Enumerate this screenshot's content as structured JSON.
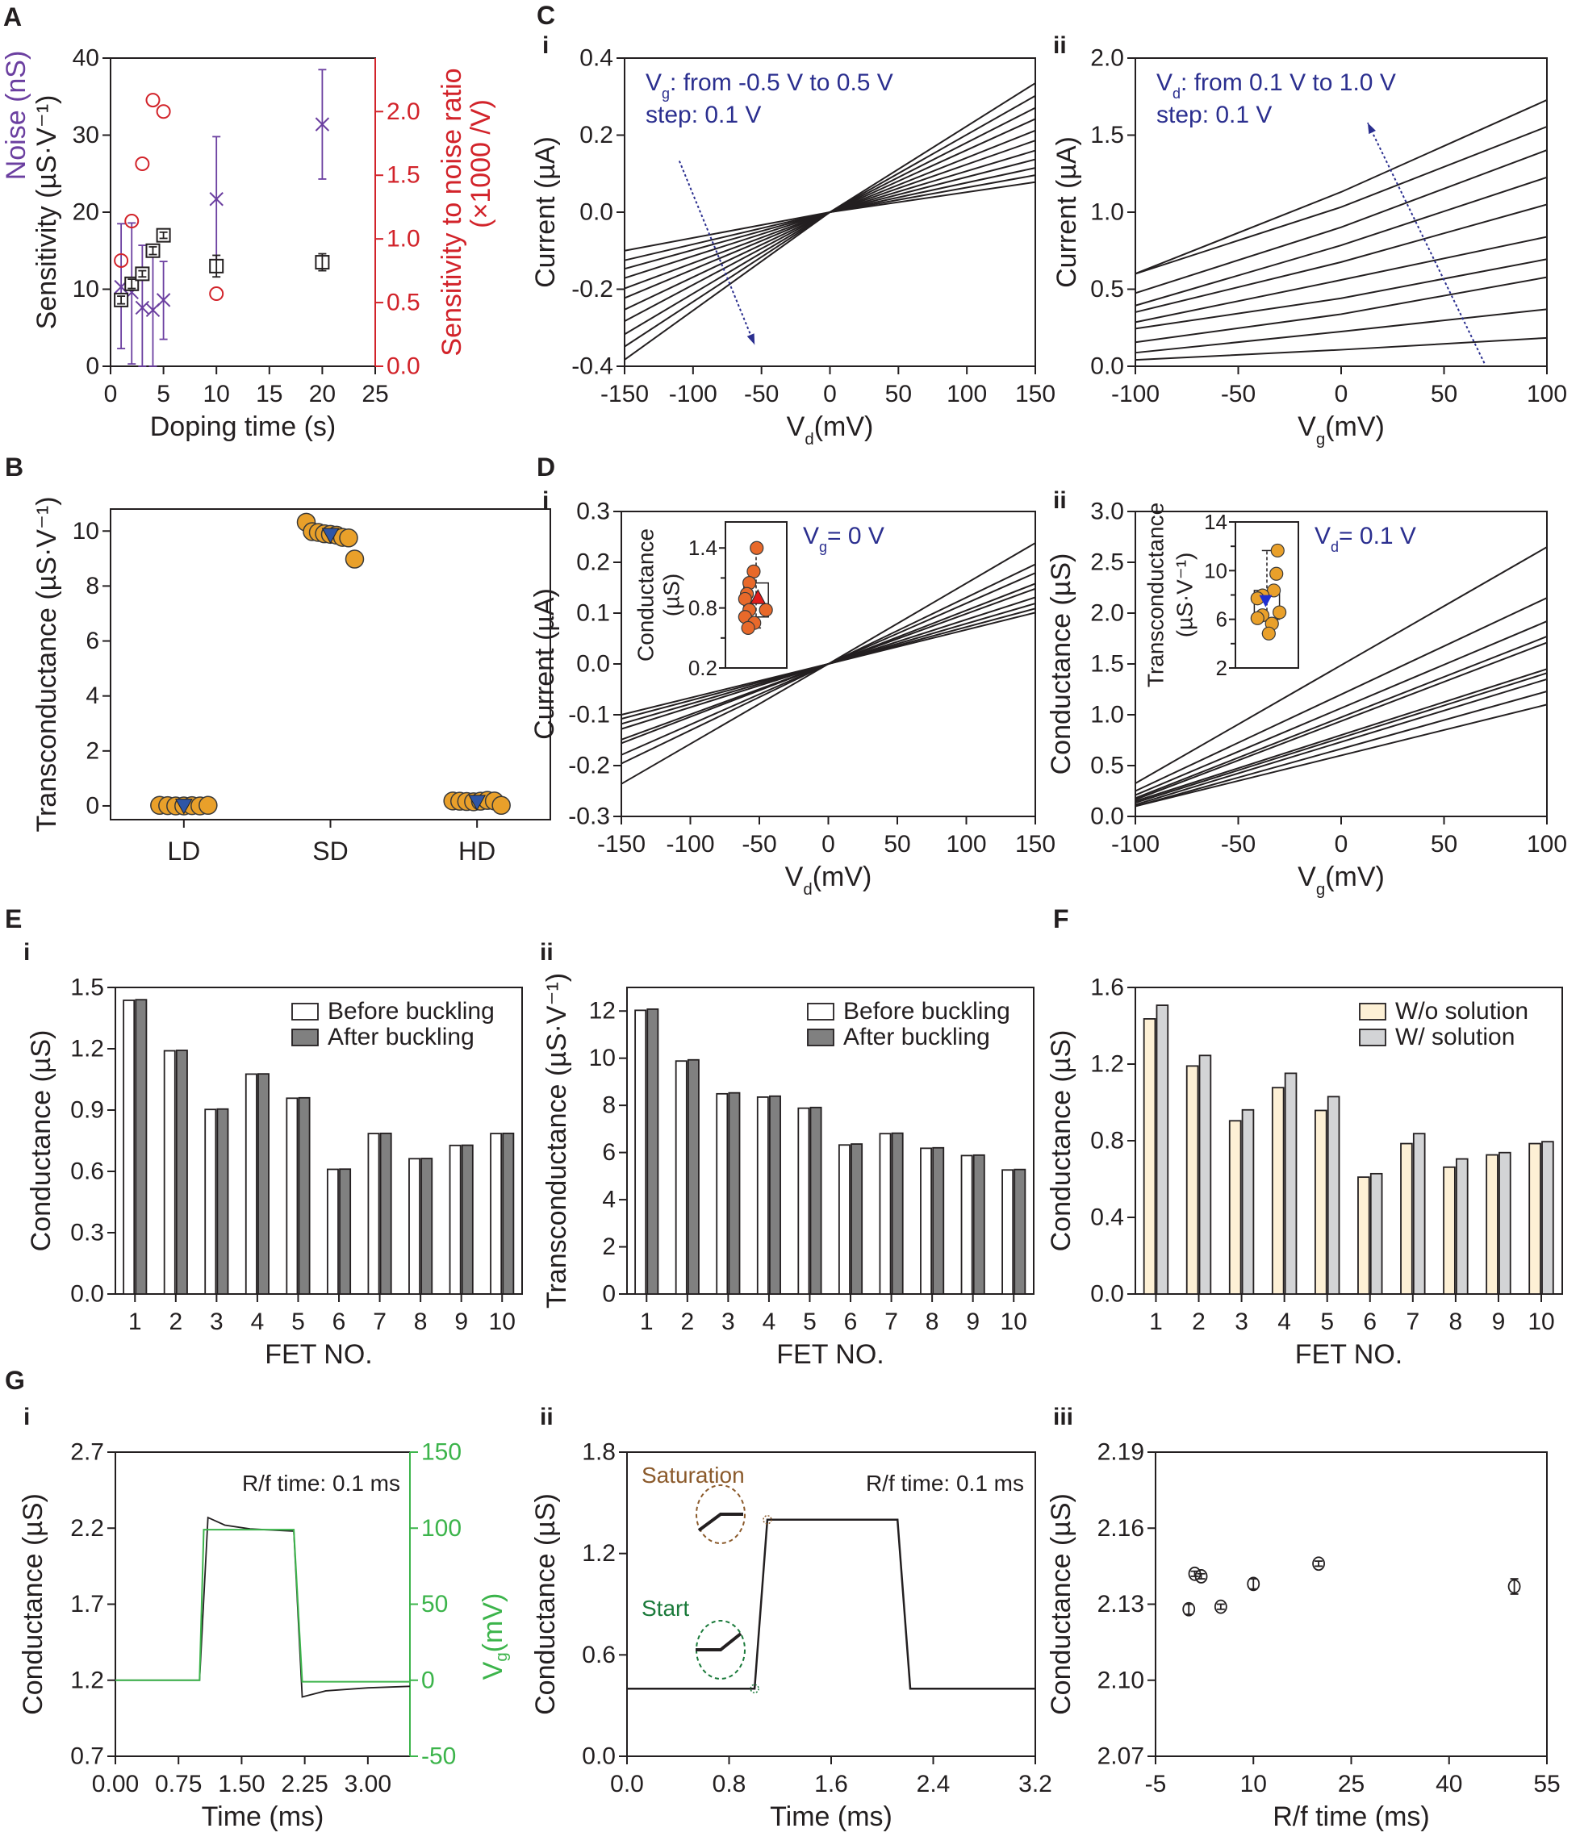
{
  "chart_data": [
    {
      "panel_letter": "A",
      "type": "scatter",
      "xlabel": "Doping time (s)",
      "ylabel": "Sensitivity (µS·V⁻¹)",
      "ylabel_noise": "Noise (nS)",
      "y2label": [
        "Sensitivity to noise ratio",
        "(×1000 /V)"
      ],
      "xlim": [
        0,
        25
      ],
      "ylim": [
        0,
        40
      ],
      "y2lim": [
        0,
        2.42
      ],
      "xticks": [
        "0",
        "5",
        "10",
        "15",
        "20",
        "25"
      ],
      "yticks": [
        "0",
        "10",
        "20",
        "30",
        "40"
      ],
      "y2ticks": [
        "0.0",
        "0.5",
        "1.0",
        "1.5",
        "2.0"
      ],
      "colors": {
        "noise": "#6b3fa0",
        "ratio": "#d2232a",
        "sensitivity": "#231f20"
      },
      "series": [
        {
          "key": "sensitivity",
          "marker": "open-square",
          "axis": "left",
          "x": [
            1,
            2,
            3,
            4,
            5,
            10,
            20
          ],
          "y": [
            8.6,
            10.7,
            12.0,
            15.0,
            17.0,
            13.0,
            13.5
          ],
          "err": [
            0.5,
            0.6,
            0.4,
            0.5,
            0.4,
            1.4,
            1.1
          ]
        },
        {
          "key": "noise",
          "marker": "cross",
          "axis": "left",
          "x": [
            1,
            2,
            3,
            4,
            5,
            10,
            20
          ],
          "y": [
            10.3,
            9.6,
            7.6,
            7.3,
            8.6,
            21.7,
            31.4
          ],
          "err_low": [
            2.3,
            0.3,
            0,
            0,
            3.5,
            13.6,
            24.3
          ],
          "err_high": [
            18.5,
            18.6,
            15.7,
            15.2,
            13.6,
            29.8,
            38.5
          ]
        },
        {
          "key": "ratio",
          "marker": "open-circle",
          "axis": "right",
          "x": [
            1,
            2,
            3,
            4,
            5,
            10
          ],
          "y": [
            0.83,
            1.14,
            1.59,
            2.09,
            2.0,
            0.57
          ]
        }
      ]
    },
    {
      "panel_letter": "B",
      "type": "scatter",
      "ylabel": "Transconductance (µS·V⁻¹)",
      "categories": [
        "LD",
        "SD",
        "HD"
      ],
      "xlim": [
        0.5,
        3.5
      ],
      "ylim": [
        -0.5,
        10.8
      ],
      "yticks": [
        "0",
        "2",
        "4",
        "6",
        "8",
        "10"
      ],
      "point_color": "#e9a02a",
      "mean_color": "#2f56a6",
      "groups": [
        {
          "values": [
            0.02,
            0.01,
            0.0,
            0.0,
            0.01,
            0.0,
            0.02
          ],
          "mean": 0.01,
          "box": [
            0.0,
            0.02
          ]
        },
        {
          "values": [
            10.32,
            9.98,
            9.95,
            9.9,
            9.88,
            9.85,
            9.77,
            9.75,
            8.98
          ],
          "mean": 9.86,
          "box": [
            9.8,
            9.95
          ]
        },
        {
          "values": [
            0.18,
            0.17,
            0.16,
            0.15,
            0.17,
            0.2,
            0.18,
            0.02
          ],
          "mean": 0.15,
          "box": [
            0.14,
            0.18
          ]
        }
      ]
    },
    {
      "panel_letter": "C",
      "sub": "i",
      "type": "line",
      "xlabel": [
        "V",
        "d",
        "(mV)"
      ],
      "ylabel": "Current (µA)",
      "xlim": [
        -150,
        150
      ],
      "ylim": [
        -0.4,
        0.4
      ],
      "xticks": [
        "-150",
        "-100",
        "-50",
        "0",
        "50",
        "100",
        "150"
      ],
      "yticks": [
        "-0.4",
        "-0.2",
        "0.0",
        "0.2",
        "0.4"
      ],
      "annotation": [
        "V",
        "g",
        ": from -0.5 V to 0.5 V"
      ],
      "annotation2": "step: 0.1 V",
      "annotation_color": "#2b2f8f",
      "x": [
        -150,
        0,
        150
      ],
      "series": [
        {
          "y": [
            -0.383,
            0,
            0.335
          ]
        },
        {
          "y": [
            -0.349,
            0,
            0.302
          ]
        },
        {
          "y": [
            -0.317,
            0,
            0.271
          ]
        },
        {
          "y": [
            -0.283,
            0,
            0.242
          ]
        },
        {
          "y": [
            -0.253,
            0,
            0.212
          ]
        },
        {
          "y": [
            -0.223,
            0,
            0.186
          ]
        },
        {
          "y": [
            -0.198,
            0,
            0.16
          ]
        },
        {
          "y": [
            -0.171,
            0,
            0.137
          ]
        },
        {
          "y": [
            -0.147,
            0,
            0.115
          ]
        },
        {
          "y": [
            -0.125,
            0,
            0.096
          ]
        },
        {
          "y": [
            -0.1,
            0,
            0.078
          ]
        }
      ]
    },
    {
      "sub": "ii",
      "type": "line",
      "xlabel": [
        "V",
        "g",
        "(mV)"
      ],
      "ylabel": "Current (µA)",
      "xlim": [
        -100,
        100
      ],
      "ylim": [
        0,
        2.0
      ],
      "xticks": [
        "-100",
        "-50",
        "0",
        "50",
        "100"
      ],
      "yticks": [
        "0.0",
        "0.5",
        "1.0",
        "1.5",
        "2.0"
      ],
      "annotation": [
        "V",
        "d",
        ": from 0.1 V to 1.0 V"
      ],
      "annotation2": "step: 0.1 V",
      "annotation_color": "#2b2f8f",
      "x": [
        -100,
        0,
        100
      ],
      "series": [
        {
          "y": [
            0.041,
            0.107,
            0.184
          ]
        },
        {
          "y": [
            0.088,
            0.225,
            0.37
          ]
        },
        {
          "y": [
            0.156,
            0.338,
            0.578
          ]
        },
        {
          "y": [
            0.244,
            0.441,
            0.695
          ]
        },
        {
          "y": [
            0.286,
            0.56,
            0.84
          ]
        },
        {
          "y": [
            0.351,
            0.676,
            1.05
          ]
        },
        {
          "y": [
            0.394,
            0.785,
            1.226
          ]
        },
        {
          "y": [
            0.475,
            0.902,
            1.403
          ]
        },
        {
          "y": [
            0.6,
            1.033,
            1.555
          ]
        },
        {
          "y": [
            0.601,
            1.131,
            1.728
          ]
        }
      ]
    },
    {
      "panel_letter": "D",
      "sub": "i",
      "type": "line",
      "xlabel": [
        "V",
        "d",
        "(mV)"
      ],
      "ylabel": "Current (µA)",
      "xlim": [
        -150,
        150
      ],
      "ylim": [
        -0.3,
        0.3
      ],
      "xticks": [
        "-150",
        "-100",
        "-50",
        "0",
        "50",
        "100",
        "150"
      ],
      "yticks": [
        "-0.3",
        "-0.2",
        "-0.1",
        "0.0",
        "0.1",
        "0.2",
        "0.3"
      ],
      "annotation": [
        "V",
        "g",
        "= 0 V"
      ],
      "annotation_color": "#2b2f8f",
      "x": [
        -150,
        0,
        150
      ],
      "series": [
        {
          "y": [
            -0.236,
            0,
            0.238
          ]
        },
        {
          "y": [
            -0.196,
            0,
            0.196
          ]
        },
        {
          "y": [
            -0.179,
            0,
            0.179
          ]
        },
        {
          "y": [
            -0.156,
            0,
            0.158
          ]
        },
        {
          "y": [
            -0.149,
            0,
            0.148
          ]
        },
        {
          "y": [
            -0.128,
            0,
            0.131
          ]
        },
        {
          "y": [
            -0.118,
            0,
            0.119
          ]
        },
        {
          "y": [
            -0.108,
            0,
            0.109
          ]
        },
        {
          "y": [
            -0.1,
            0,
            0.101
          ]
        }
      ],
      "inset": {
        "type": "box-scatter",
        "ylabel": [
          "Conductance",
          "(µS)"
        ],
        "ylim": [
          0.2,
          1.66
        ],
        "yticks": [
          "0.2",
          "0.8",
          "1.4"
        ],
        "values": [
          1.4,
          1.165,
          1.05,
          0.94,
          0.89,
          0.78,
          0.78,
          0.71,
          0.65,
          0.6
        ],
        "mean": 0.9,
        "box": [
          0.71,
          1.05
        ],
        "whiskers": [
          0.6,
          1.4
        ],
        "point_color": "#e8692a",
        "mean_color": "#e01b1b",
        "mean_marker": "triangle-up"
      }
    },
    {
      "sub": "ii",
      "type": "line",
      "xlabel": [
        "V",
        "g",
        "(mV)"
      ],
      "ylabel": "Conductance (µS)",
      "xlim": [
        -100,
        100
      ],
      "ylim": [
        0,
        3.0
      ],
      "xticks": [
        "-100",
        "-50",
        "0",
        "50",
        "100"
      ],
      "yticks": [
        "0.0",
        "0.5",
        "1.0",
        "1.5",
        "2.0",
        "2.5",
        "3.0"
      ],
      "annotation": [
        "V",
        "d",
        "= 0.1 V"
      ],
      "annotation_color": "#2b2f8f",
      "x": [
        -100,
        100
      ],
      "series": [
        {
          "y": [
            0.325,
            2.65
          ]
        },
        {
          "y": [
            0.25,
            2.15
          ]
        },
        {
          "y": [
            0.21,
            1.92
          ]
        },
        {
          "y": [
            0.18,
            1.77
          ]
        },
        {
          "y": [
            0.165,
            1.71
          ]
        },
        {
          "y": [
            0.15,
            1.45
          ]
        },
        {
          "y": [
            0.135,
            1.41
          ]
        },
        {
          "y": [
            0.115,
            1.35
          ]
        },
        {
          "y": [
            0.1,
            1.23
          ]
        },
        {
          "y": [
            0.1,
            1.1
          ]
        }
      ],
      "inset": {
        "type": "box-scatter",
        "ylabel": [
          "Transconductance",
          "(µS·V⁻¹)"
        ],
        "ylim": [
          2,
          14
        ],
        "yticks": [
          "2",
          "6",
          "10",
          "14"
        ],
        "values": [
          11.65,
          9.74,
          8.37,
          7.96,
          7.72,
          6.57,
          6.33,
          6.09,
          5.64,
          4.83
        ],
        "mean": 7.53,
        "box": [
          6.0,
          8.37
        ],
        "whiskers": [
          4.83,
          11.65
        ],
        "point_color": "#e9a02a",
        "mean_color": "#1f2fd0",
        "mean_marker": "triangle-down"
      }
    },
    {
      "panel_letter": "E",
      "sub": "i",
      "type": "bar",
      "xlabel": "FET NO.",
      "ylabel": "Conductance (µS)",
      "categories": [
        "1",
        "2",
        "3",
        "4",
        "5",
        "6",
        "7",
        "8",
        "9",
        "10"
      ],
      "xlim": [
        0.52,
        10.49
      ],
      "ylim": [
        0,
        1.5
      ],
      "yticks": [
        "0.0",
        "0.3",
        "0.6",
        "0.9",
        "1.2",
        "1.5"
      ],
      "legend": "top-right",
      "series": [
        {
          "name": "Before buckling",
          "color": "#ffffff",
          "values": [
            1.437,
            1.19,
            0.903,
            1.076,
            0.958,
            0.61,
            0.785,
            0.662,
            0.727,
            0.785
          ]
        },
        {
          "name": "After buckling",
          "color": "#808080",
          "values": [
            1.44,
            1.192,
            0.905,
            1.077,
            0.96,
            0.611,
            0.786,
            0.663,
            0.728,
            0.786
          ]
        }
      ]
    },
    {
      "sub": "ii",
      "type": "bar",
      "xlabel": "FET NO.",
      "ylabel": "Transconductance (µS·V⁻¹)",
      "categories": [
        "1",
        "2",
        "3",
        "4",
        "5",
        "6",
        "7",
        "8",
        "9",
        "10"
      ],
      "xlim": [
        0.52,
        10.49
      ],
      "ylim": [
        0,
        13
      ],
      "yticks": [
        "0",
        "2",
        "4",
        "6",
        "8",
        "10",
        "12"
      ],
      "legend": "top-right",
      "series": [
        {
          "name": "Before buckling",
          "color": "#ffffff",
          "values": [
            12.03,
            9.88,
            8.49,
            8.35,
            7.88,
            6.32,
            6.8,
            6.18,
            5.87,
            5.26
          ]
        },
        {
          "name": "After buckling",
          "color": "#808080",
          "values": [
            12.08,
            9.93,
            8.53,
            8.39,
            7.91,
            6.36,
            6.82,
            6.2,
            5.89,
            5.28
          ]
        }
      ]
    },
    {
      "panel_letter": "F",
      "type": "bar",
      "xlabel": "FET NO.",
      "ylabel": "Conductance (µS)",
      "categories": [
        "1",
        "2",
        "3",
        "4",
        "5",
        "6",
        "7",
        "8",
        "9",
        "10"
      ],
      "xlim": [
        0.52,
        10.49
      ],
      "ylim": [
        0,
        1.6
      ],
      "yticks": [
        "0.0",
        "0.4",
        "0.8",
        "1.2",
        "1.6"
      ],
      "legend": "top-right",
      "series": [
        {
          "name": "W/o solution",
          "color": "#fdf0d5",
          "values": [
            1.436,
            1.19,
            0.904,
            1.077,
            0.958,
            0.61,
            0.785,
            0.662,
            0.726,
            0.785
          ]
        },
        {
          "name": "W/ solution",
          "color": "#d3d4d6",
          "values": [
            1.507,
            1.245,
            0.961,
            1.152,
            1.03,
            0.628,
            0.837,
            0.705,
            0.738,
            0.795
          ]
        }
      ]
    },
    {
      "panel_letter": "G",
      "sub": "i",
      "type": "line",
      "xlabel": "Time (ms)",
      "ylabel": "Conductance (µS)",
      "y2label": [
        "V",
        "g",
        "(mV)"
      ],
      "xlim": [
        0,
        3.5
      ],
      "ylim": [
        0.7,
        2.7
      ],
      "y2lim": [
        -50,
        150
      ],
      "xticks": [
        "0.00",
        "0.75",
        "1.50",
        "2.25",
        "3.00"
      ],
      "yticks": [
        "0.7",
        "1.2",
        "1.7",
        "2.2",
        "2.7"
      ],
      "y2ticks": [
        "-50",
        "0",
        "50",
        "100",
        "150"
      ],
      "annotation": "R/f time: 0.1 ms",
      "colors": {
        "conductance": "#231f20",
        "vg": "#3cb44b"
      },
      "conductance": {
        "x": [
          0,
          1.0,
          1.1,
          1.3,
          1.6,
          2.12,
          2.22,
          2.5,
          3.0,
          3.5
        ],
        "y": [
          1.2,
          1.2,
          2.27,
          2.22,
          2.195,
          2.18,
          1.09,
          1.13,
          1.15,
          1.16
        ]
      },
      "vg": {
        "x": [
          0,
          1.0,
          1.05,
          2.12,
          2.22,
          3.5
        ],
        "y": [
          0,
          0,
          99,
          99,
          -1,
          -1
        ]
      }
    },
    {
      "sub": "ii",
      "type": "line",
      "xlabel": "Time (ms)",
      "ylabel": "Conductance (µS)",
      "xlim": [
        0,
        3.2
      ],
      "ylim": [
        0,
        1.8
      ],
      "xticks": [
        "0.0",
        "0.8",
        "1.6",
        "2.4",
        "3.2"
      ],
      "yticks": [
        "0.0",
        "0.6",
        "1.2",
        "1.8"
      ],
      "annotation": "R/f time: 0.1 ms",
      "labels": {
        "saturation": "Saturation",
        "start": "Start"
      },
      "colors": {
        "saturation": "#8b5a2b",
        "start": "#1a7a3a"
      },
      "x": [
        0,
        1.0,
        1.1,
        2.12,
        2.22,
        3.2
      ],
      "y": [
        0.4,
        0.4,
        1.4,
        1.4,
        0.4,
        0.4
      ]
    },
    {
      "sub": "iii",
      "type": "scatter",
      "xlabel": "R/f time (ms)",
      "ylabel": "Conductance (µS)",
      "xlim": [
        -5,
        55
      ],
      "ylim": [
        2.07,
        2.19
      ],
      "xticks": [
        "-5",
        "10",
        "25",
        "40",
        "55"
      ],
      "yticks": [
        "2.07",
        "2.10",
        "2.13",
        "2.16",
        "2.19"
      ],
      "x": [
        0.1,
        1,
        2,
        5,
        10,
        20,
        50
      ],
      "y": [
        2.128,
        2.142,
        2.141,
        2.129,
        2.138,
        2.146,
        2.137
      ],
      "err": [
        0.002,
        0.001,
        0.001,
        0.001,
        0.002,
        0.001,
        0.003
      ]
    }
  ]
}
